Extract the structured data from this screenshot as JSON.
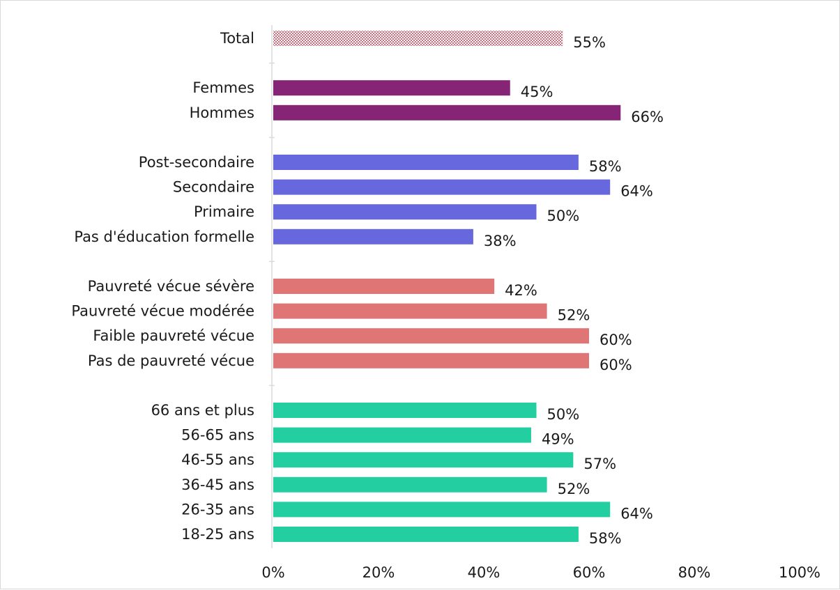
{
  "chart_data": {
    "type": "bar",
    "orientation": "horizontal",
    "title": "",
    "xlabel": "",
    "ylabel": "",
    "xlim": [
      0,
      100
    ],
    "x_ticks": [
      "0%",
      "20%",
      "40%",
      "60%",
      "80%",
      "100%"
    ],
    "grid": false,
    "legend": "none",
    "value_suffix": "%",
    "groups": [
      {
        "color": "#d46a7a",
        "pattern": "dotted",
        "categories": [
          "Total"
        ],
        "values": [
          55
        ]
      },
      {
        "color": "#862576",
        "categories": [
          "Femmes",
          "Hommes"
        ],
        "values": [
          45,
          66
        ]
      },
      {
        "color": "#6767de",
        "categories": [
          "Post-secondaire",
          "Secondaire",
          "Primaire",
          "Pas d'éducation formelle"
        ],
        "values": [
          58,
          64,
          50,
          38
        ]
      },
      {
        "color": "#e07575",
        "categories": [
          "Pauvreté vécue sévère",
          "Pauvreté vécue modérée ",
          "Faible pauvreté vécue",
          "Pas de pauvreté vécue"
        ],
        "values": [
          42,
          52,
          60,
          60
        ]
      },
      {
        "color": "#23cfa0",
        "categories": [
          "66 ans et plus",
          "56-65 ans ",
          "46-55 ans ",
          "36-45 ans ",
          "26-35 ans ",
          "18-25 ans "
        ],
        "values": [
          50,
          49,
          57,
          52,
          64,
          58
        ]
      }
    ]
  }
}
